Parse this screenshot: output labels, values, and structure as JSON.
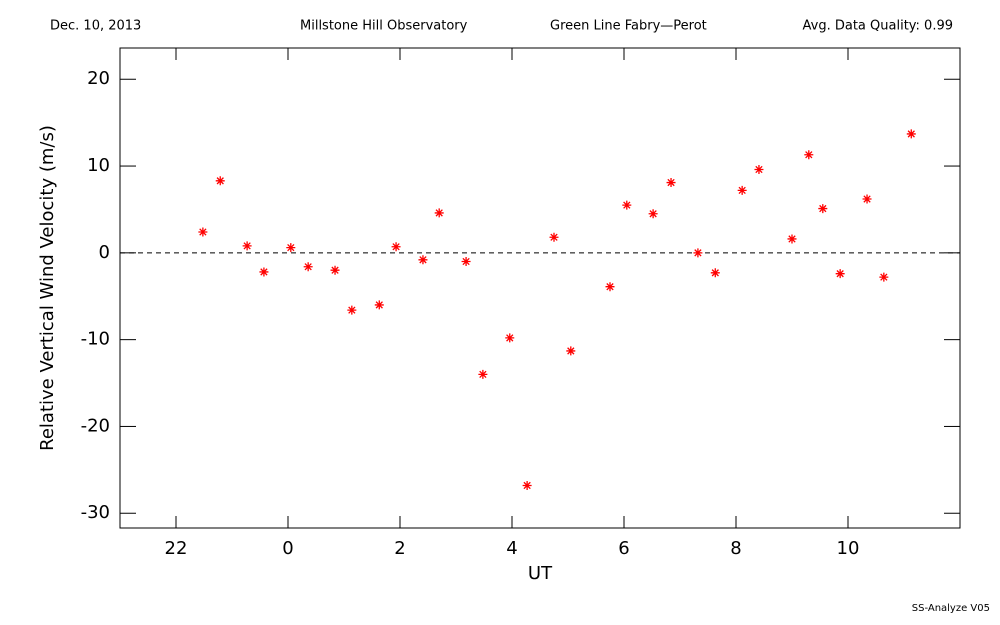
{
  "chart_data": {
    "type": "scatter",
    "header": [
      "Dec. 10, 2013",
      "Millstone Hill Observatory",
      "Green Line Fabry—Perot",
      "Avg. Data Quality: 0.99"
    ],
    "footer": "SS-Analyze V05",
    "x_label": "UT",
    "y_label": "Relative Vertical Wind Velocity (m/s)",
    "color": "#ff0000",
    "hline": 0,
    "x": [
      -1.52,
      -1.21,
      -0.73,
      -0.43,
      0.05,
      0.36,
      0.84,
      1.14,
      1.63,
      1.93,
      2.41,
      2.7,
      3.18,
      3.48,
      3.96,
      4.27,
      4.75,
      5.05,
      5.75,
      6.05,
      6.52,
      6.84,
      7.32,
      7.63,
      8.11,
      8.41,
      9.0,
      9.3,
      9.55,
      9.86,
      10.34,
      10.64,
      11.13
    ],
    "values": [
      2.4,
      8.3,
      0.8,
      -2.2,
      0.6,
      -1.6,
      -2.0,
      -6.6,
      -6.0,
      0.7,
      -0.8,
      4.6,
      -1.0,
      -14.0,
      -9.8,
      -26.8,
      1.8,
      -11.3,
      -3.9,
      5.5,
      4.5,
      8.1,
      0,
      -2.3,
      7.2,
      9.6,
      1.6,
      11.3,
      5.1,
      -2.4,
      6.2,
      -2.8,
      13.7
    ],
    "xlim": [
      -3,
      12
    ],
    "xticks": [
      {
        "value": -2,
        "label": "22"
      },
      0,
      2,
      4,
      6,
      8,
      10
    ],
    "ylim": [
      -31.7,
      23.6
    ],
    "yticks": [
      -30,
      -20,
      -10,
      0,
      10,
      20
    ]
  }
}
